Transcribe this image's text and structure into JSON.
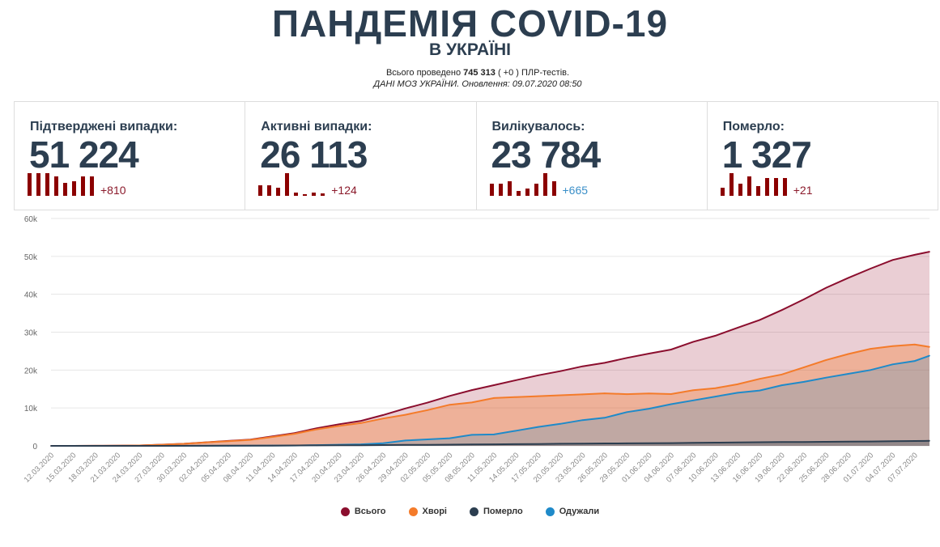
{
  "header": {
    "title": "ПАНДЕМІЯ COVID-19",
    "subtitle": "В УКРАЇНІ",
    "tests_prefix": "Всього проведено ",
    "tests_value": "745 313",
    "tests_suffix": " ( +0 ) ПЛР-тестів.",
    "source": "ДАНІ МОЗ УКРАЇНИ. Оновлення: 09.07.2020 08:50"
  },
  "cards": [
    {
      "label": "Підтверджені випадки:",
      "value": "51 224",
      "delta": "+810",
      "delta_color": "#8b1a2b",
      "spark": [
        0.93,
        0.93,
        0.93,
        0.8,
        0.53,
        0.6,
        0.8,
        0.8
      ]
    },
    {
      "label": "Активні випадки:",
      "value": "26 113",
      "delta": "+124",
      "delta_color": "#8b1a2b",
      "spark": [
        0.45,
        0.45,
        0.35,
        0.93,
        0.15,
        0.03,
        0.15,
        0.1
      ]
    },
    {
      "label": "Вилікувалось:",
      "value": "23 784",
      "delta": "+665",
      "delta_color": "#3a8fc8",
      "spark": [
        0.5,
        0.5,
        0.6,
        0.2,
        0.3,
        0.5,
        0.93,
        0.6
      ]
    },
    {
      "label": "Померло:",
      "value": "1 327",
      "delta": "+21",
      "delta_color": "#8b1a2b",
      "spark": [
        0.35,
        0.93,
        0.5,
        0.8,
        0.4,
        0.75,
        0.75,
        0.75
      ]
    }
  ],
  "chart_data": {
    "type": "area",
    "y_ticks": [
      "0",
      "10k",
      "20k",
      "30k",
      "40k",
      "50k",
      "60k"
    ],
    "ylim": [
      0,
      60000
    ],
    "grid": true,
    "legend_position": "bottom",
    "x": [
      "12.03.2020",
      "15.03.2020",
      "18.03.2020",
      "21.03.2020",
      "24.03.2020",
      "27.03.2020",
      "30.03.2020",
      "02.04.2020",
      "05.04.2020",
      "08.04.2020",
      "11.04.2020",
      "14.04.2020",
      "17.04.2020",
      "20.04.2020",
      "23.04.2020",
      "26.04.2020",
      "29.04.2020",
      "02.05.2020",
      "05.05.2020",
      "08.05.2020",
      "11.05.2020",
      "14.05.2020",
      "17.05.2020",
      "20.05.2020",
      "23.05.2020",
      "26.05.2020",
      "29.05.2020",
      "01.06.2020",
      "04.06.2020",
      "07.06.2020",
      "10.06.2020",
      "13.06.2020",
      "16.06.2020",
      "19.06.2020",
      "22.06.2020",
      "25.06.2020",
      "28.06.2020",
      "01.07.2020",
      "04.07.2020",
      "07.07.2020",
      "09.07.2020"
    ],
    "series": [
      {
        "name": "Всього",
        "color": "#8b0e2e",
        "values": [
          3,
          3,
          16,
          47,
          113,
          310,
          548,
          942,
          1308,
          1668,
          2511,
          3372,
          4662,
          5710,
          6592,
          8125,
          9866,
          11411,
          13184,
          14710,
          16023,
          17330,
          18616,
          19706,
          20986,
          21905,
          23204,
          24340,
          25411,
          27462,
          29070,
          31154,
          33234,
          35825,
          38664,
          41732,
          44334,
          46763,
          49043,
          50414,
          51224
        ]
      },
      {
        "name": "Хворі",
        "color": "#f47b2a",
        "values": [
          3,
          3,
          16,
          43,
          109,
          296,
          527,
          902,
          1249,
          1581,
          2359,
          3182,
          4351,
          5259,
          6018,
          7212,
          8209,
          9432,
          10857,
          11449,
          12615,
          12874,
          13119,
          13351,
          13581,
          13861,
          13646,
          13844,
          13676,
          14665,
          15215,
          16252,
          17673,
          18823,
          20729,
          22665,
          24232,
          25609,
          26314,
          26723,
          26113
        ]
      },
      {
        "name": "Померло",
        "color": "#2c3e50",
        "values": [
          0,
          0,
          0,
          3,
          3,
          9,
          13,
          23,
          37,
          52,
          73,
          98,
          125,
          151,
          174,
          213,
          257,
          279,
          327,
          361,
          408,
          456,
          497,
          555,
          605,
          644,
          658,
          696,
          735,
          797,
          855,
          902,
          961,
          1002,
          1035,
          1067,
          1102,
          1154,
          1229,
          1291,
          1327
        ]
      },
      {
        "name": "Одужали",
        "color": "#1f8ac9",
        "values": [
          0,
          0,
          0,
          1,
          1,
          5,
          8,
          17,
          22,
          35,
          79,
          92,
          186,
          300,
          400,
          700,
          1400,
          1700,
          2000,
          2900,
          3000,
          4000,
          5000,
          5800,
          6800,
          7400,
          8900,
          9800,
          11000,
          12000,
          13000,
          14000,
          14600,
          16000,
          16900,
          18000,
          19000,
          20000,
          21500,
          22400,
          23784
        ]
      }
    ]
  }
}
